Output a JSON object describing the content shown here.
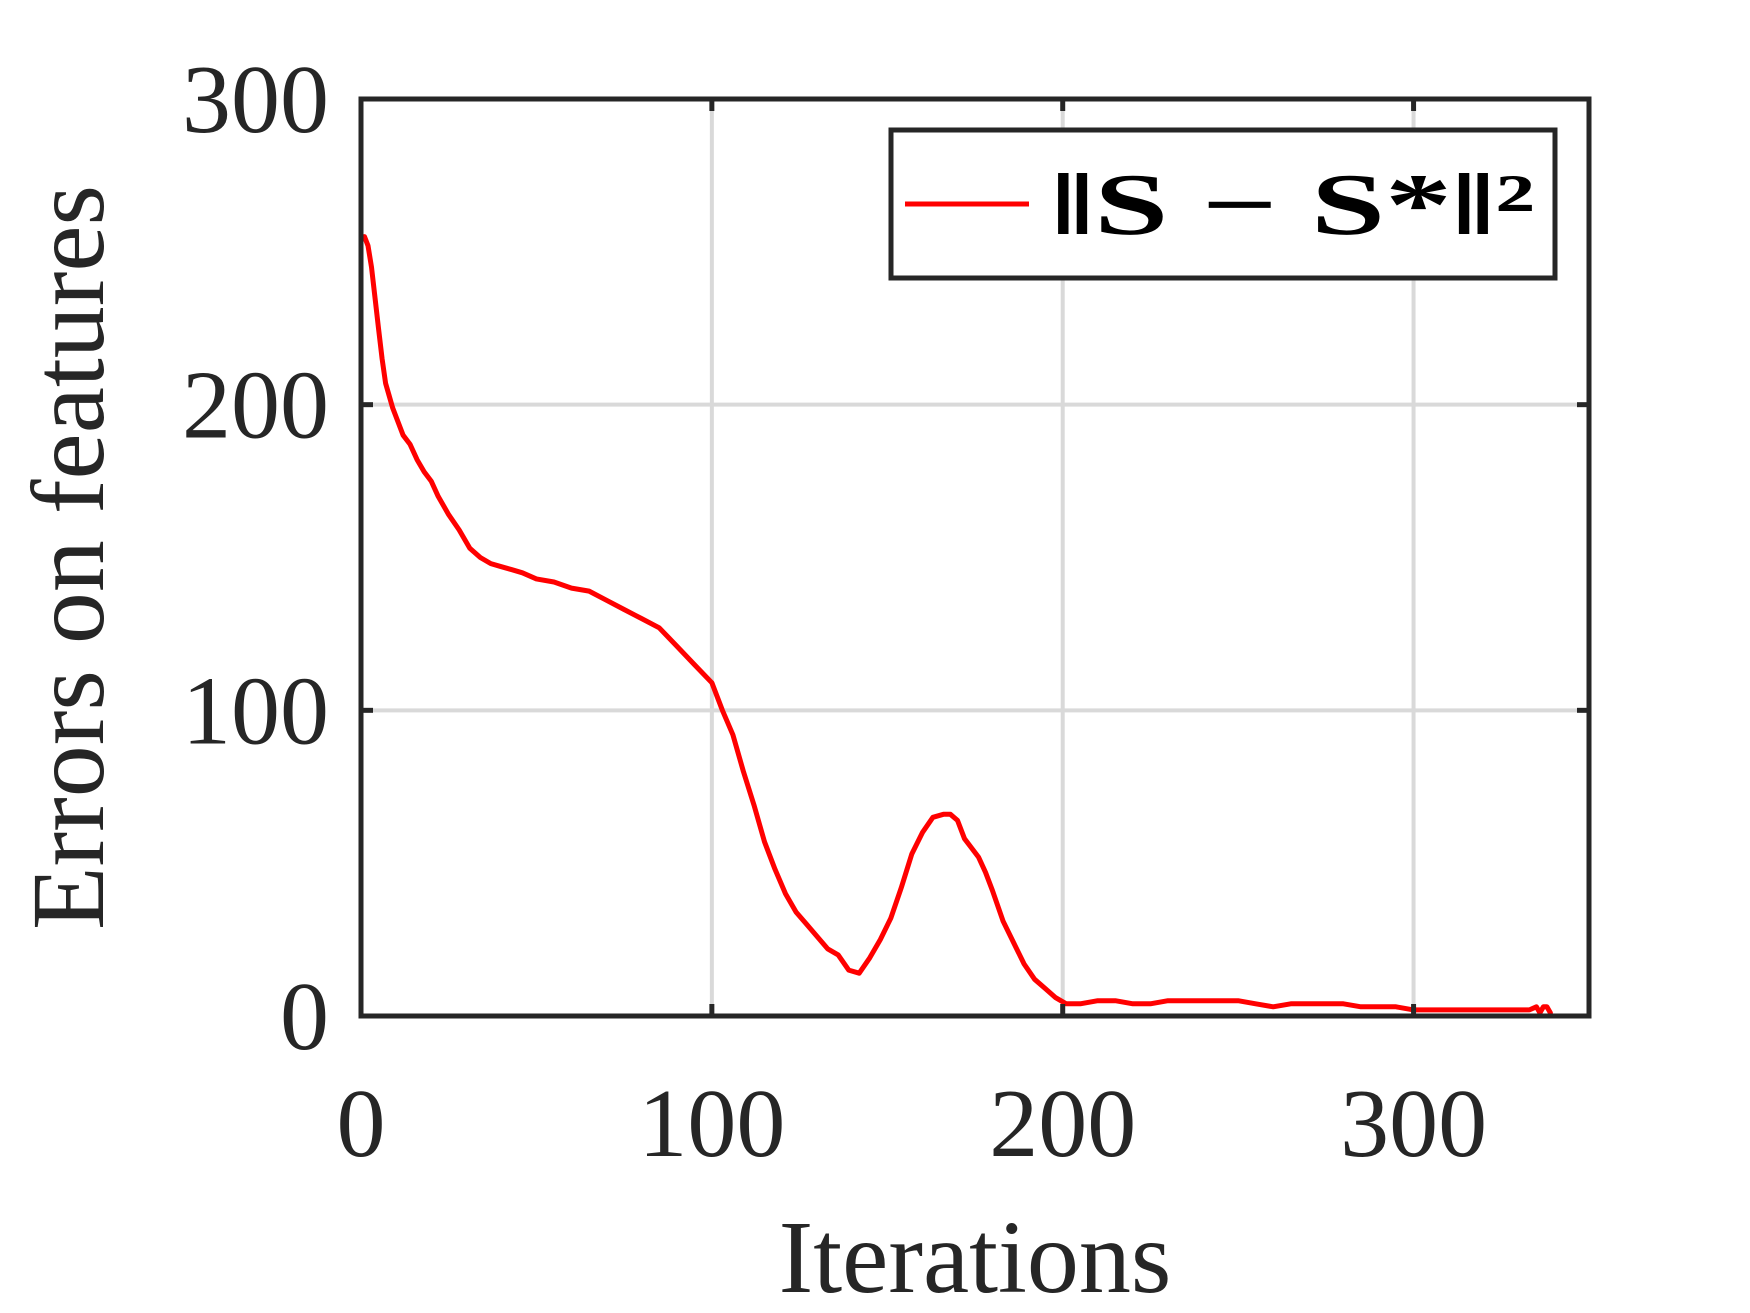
{
  "chart_data": {
    "type": "line",
    "title": "",
    "xlabel": "Iterations",
    "ylabel": "Errors on features",
    "xlim": [
      0,
      350
    ],
    "ylim": [
      0,
      300
    ],
    "x_ticks": [
      0,
      100,
      200,
      300
    ],
    "y_ticks": [
      0,
      100,
      200,
      300
    ],
    "grid": true,
    "legend": {
      "position": "top-right",
      "entries": [
        "‖S − S*‖²"
      ]
    },
    "series": [
      {
        "name": "‖S − S*‖²",
        "color": "#ff0000",
        "x": [
          1,
          2,
          3,
          4,
          5,
          6,
          7,
          8,
          9,
          10,
          12,
          14,
          16,
          18,
          20,
          22,
          25,
          28,
          31,
          34,
          37,
          40,
          43,
          46,
          50,
          55,
          60,
          65,
          70,
          75,
          80,
          85,
          90,
          95,
          100,
          103,
          106,
          109,
          112,
          115,
          118,
          121,
          124,
          127,
          130,
          133,
          136,
          139,
          142,
          145,
          148,
          151,
          154,
          157,
          160,
          163,
          166,
          168,
          170,
          172,
          174,
          176,
          178,
          180,
          183,
          186,
          189,
          192,
          195,
          198,
          201,
          205,
          210,
          215,
          220,
          225,
          230,
          235,
          240,
          245,
          250,
          255,
          260,
          265,
          270,
          275,
          280,
          285,
          290,
          295,
          300,
          305,
          310,
          315,
          320,
          325,
          330,
          333,
          335,
          336,
          337,
          338,
          339
        ],
        "y": [
          255,
          252,
          245,
          235,
          225,
          215,
          207,
          203,
          199,
          196,
          190,
          187,
          182,
          178,
          175,
          170,
          164,
          159,
          153,
          150,
          148,
          147,
          146,
          145,
          143,
          142,
          140,
          139,
          136,
          133,
          130,
          127,
          121,
          115,
          109,
          100,
          92,
          80,
          69,
          57,
          48,
          40,
          34,
          30,
          26,
          22,
          20,
          15,
          14,
          19,
          25,
          32,
          42,
          53,
          60,
          65,
          66,
          66,
          64,
          58,
          55,
          52,
          47,
          41,
          31,
          24,
          17,
          12,
          9,
          6,
          4,
          4,
          5,
          5,
          4,
          4,
          5,
          5,
          5,
          5,
          5,
          4,
          3,
          4,
          4,
          4,
          4,
          3,
          3,
          3,
          2,
          2,
          2,
          2,
          2,
          2,
          2,
          2,
          3,
          1,
          3,
          3,
          1
        ]
      }
    ]
  }
}
